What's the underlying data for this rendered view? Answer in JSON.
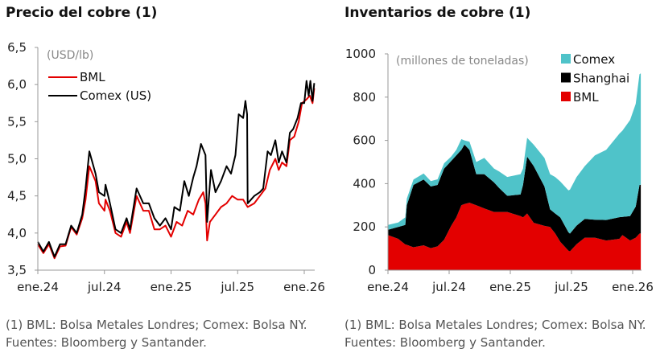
{
  "chart_data": [
    {
      "type": "line",
      "title": "Precio del cobre (1)",
      "unit_label": "(USD/lb)",
      "x_unit": "months since Jan 2024",
      "x_ticks": [
        {
          "value": 0,
          "label": "ene.24"
        },
        {
          "value": 6,
          "label": "jul.24"
        },
        {
          "value": 12,
          "label": "ene.25"
        },
        {
          "value": 18,
          "label": "jul.25"
        },
        {
          "value": 24,
          "label": "ene.26"
        }
      ],
      "y_ticks": [
        {
          "value": 3.5,
          "label": "3,5"
        },
        {
          "value": 4.0,
          "label": "4,0"
        },
        {
          "value": 4.5,
          "label": "4,5"
        },
        {
          "value": 5.0,
          "label": "5,0"
        },
        {
          "value": 5.5,
          "label": "5,5"
        },
        {
          "value": 6.0,
          "label": "6,0"
        },
        {
          "value": 6.5,
          "label": "6,5"
        }
      ],
      "ylim": [
        3.5,
        6.5
      ],
      "xlim": [
        0,
        24
      ],
      "legend_position": "top-left",
      "series": [
        {
          "name": "BML",
          "color": "#e30000",
          "points": [
            [
              0,
              3.85
            ],
            [
              0.5,
              3.73
            ],
            [
              1,
              3.85
            ],
            [
              1.5,
              3.66
            ],
            [
              2,
              3.82
            ],
            [
              2.5,
              3.83
            ],
            [
              3,
              4.08
            ],
            [
              3.5,
              3.98
            ],
            [
              4,
              4.2
            ],
            [
              4.3,
              4.45
            ],
            [
              4.64,
              4.9
            ],
            [
              5.2,
              4.7
            ],
            [
              5.5,
              4.4
            ],
            [
              6,
              4.3
            ],
            [
              6.1,
              4.45
            ],
            [
              6.5,
              4.3
            ],
            [
              7,
              4.0
            ],
            [
              7.5,
              3.95
            ],
            [
              8,
              4.15
            ],
            [
              8.3,
              4.0
            ],
            [
              8.9,
              4.5
            ],
            [
              9.5,
              4.3
            ],
            [
              10,
              4.3
            ],
            [
              10.5,
              4.05
            ],
            [
              11,
              4.05
            ],
            [
              11.5,
              4.1
            ],
            [
              12,
              3.95
            ],
            [
              12.5,
              4.15
            ],
            [
              13,
              4.1
            ],
            [
              13.5,
              4.3
            ],
            [
              14,
              4.25
            ],
            [
              14.5,
              4.45
            ],
            [
              14.9,
              4.55
            ],
            [
              15.1,
              4.4
            ],
            [
              15.25,
              3.9
            ],
            [
              15.5,
              4.15
            ],
            [
              16,
              4.25
            ],
            [
              16.5,
              4.35
            ],
            [
              17,
              4.4
            ],
            [
              17.5,
              4.5
            ],
            [
              18,
              4.45
            ],
            [
              18.5,
              4.45
            ],
            [
              18.9,
              4.35
            ],
            [
              19.5,
              4.4
            ],
            [
              20,
              4.5
            ],
            [
              20.5,
              4.6
            ],
            [
              20.9,
              4.85
            ],
            [
              21.4,
              5.0
            ],
            [
              21.7,
              4.85
            ],
            [
              22,
              4.95
            ],
            [
              22.4,
              4.9
            ],
            [
              22.7,
              5.25
            ],
            [
              23.1,
              5.3
            ],
            [
              23.5,
              5.5
            ],
            [
              23.8,
              5.75
            ],
            [
              24.2,
              5.8
            ],
            [
              24.5,
              5.85
            ],
            [
              24.75,
              5.75
            ],
            [
              24.9,
              5.95
            ]
          ]
        },
        {
          "name": "Comex (US)",
          "color": "#000000",
          "points": [
            [
              0,
              3.88
            ],
            [
              0.5,
              3.75
            ],
            [
              1,
              3.88
            ],
            [
              1.5,
              3.68
            ],
            [
              2,
              3.85
            ],
            [
              2.5,
              3.85
            ],
            [
              3,
              4.1
            ],
            [
              3.5,
              4.0
            ],
            [
              4,
              4.25
            ],
            [
              4.3,
              4.6
            ],
            [
              4.64,
              5.1
            ],
            [
              5.2,
              4.8
            ],
            [
              5.5,
              4.55
            ],
            [
              6,
              4.5
            ],
            [
              6.1,
              4.65
            ],
            [
              6.5,
              4.4
            ],
            [
              7,
              4.05
            ],
            [
              7.5,
              4.0
            ],
            [
              8,
              4.2
            ],
            [
              8.3,
              4.05
            ],
            [
              8.9,
              4.6
            ],
            [
              9.5,
              4.4
            ],
            [
              10,
              4.4
            ],
            [
              10.5,
              4.2
            ],
            [
              11,
              4.1
            ],
            [
              11.5,
              4.2
            ],
            [
              12,
              4.05
            ],
            [
              12.3,
              4.35
            ],
            [
              12.8,
              4.3
            ],
            [
              13.2,
              4.7
            ],
            [
              13.6,
              4.5
            ],
            [
              14,
              4.75
            ],
            [
              14.3,
              4.9
            ],
            [
              14.7,
              5.2
            ],
            [
              15.1,
              5.05
            ],
            [
              15.25,
              4.15
            ],
            [
              15.6,
              4.85
            ],
            [
              16,
              4.55
            ],
            [
              16.5,
              4.7
            ],
            [
              17,
              4.9
            ],
            [
              17.4,
              4.8
            ],
            [
              17.8,
              5.05
            ],
            [
              18.1,
              5.6
            ],
            [
              18.5,
              5.55
            ],
            [
              18.7,
              5.78
            ],
            [
              18.85,
              5.6
            ],
            [
              18.9,
              4.4
            ],
            [
              19.5,
              4.5
            ],
            [
              20,
              4.55
            ],
            [
              20.3,
              4.6
            ],
            [
              20.7,
              5.1
            ],
            [
              21,
              5.05
            ],
            [
              21.4,
              5.25
            ],
            [
              21.7,
              4.95
            ],
            [
              22,
              5.1
            ],
            [
              22.4,
              4.95
            ],
            [
              22.7,
              5.35
            ],
            [
              23,
              5.4
            ],
            [
              23.4,
              5.55
            ],
            [
              23.7,
              5.75
            ],
            [
              24,
              5.75
            ],
            [
              24.2,
              6.05
            ],
            [
              24.4,
              5.85
            ],
            [
              24.55,
              6.05
            ],
            [
              24.75,
              5.78
            ],
            [
              24.9,
              6.02
            ]
          ]
        }
      ]
    },
    {
      "type": "area",
      "stacked": true,
      "title": "Inventarios de cobre (1)",
      "unit_label": "(millones de toneladas)",
      "x_unit": "months since Jan 2024",
      "x_ticks": [
        {
          "value": 0,
          "label": "ene.24"
        },
        {
          "value": 6,
          "label": "jul.24"
        },
        {
          "value": 12,
          "label": "ene.25"
        },
        {
          "value": 18,
          "label": "jul.25"
        },
        {
          "value": 24,
          "label": "ene.26"
        }
      ],
      "y_ticks": [
        {
          "value": 0,
          "label": "0"
        },
        {
          "value": 200,
          "label": "200"
        },
        {
          "value": 400,
          "label": "400"
        },
        {
          "value": 600,
          "label": "600"
        },
        {
          "value": 800,
          "label": "800"
        },
        {
          "value": 1000,
          "label": "1000"
        }
      ],
      "ylim": [
        0,
        1000
      ],
      "xlim": [
        0,
        24
      ],
      "legend_position": "top-right",
      "x": [
        0,
        1,
        1.7,
        1.85,
        2.5,
        3.5,
        4.2,
        4.86,
        5.5,
        6.2,
        6.7,
        7.2,
        7.5,
        8.0,
        8.66,
        9.45,
        10.4,
        10.9,
        11.7,
        13.0,
        13.25,
        13.65,
        14.3,
        15.35,
        15.9,
        16.4,
        16.9,
        17.7,
        17.85,
        18.5,
        19.3,
        20.3,
        21.4,
        22.7,
        23.0,
        23.75,
        24.3,
        24.67,
        24.8
      ],
      "series": [
        {
          "name": "BML",
          "color": "#e30000",
          "values": [
            162,
            145,
            119,
            117,
            106,
            115,
            102,
            110,
            140,
            205,
            244,
            300,
            306,
            312,
            300,
            285,
            269,
            269,
            269,
            250,
            244,
            262,
            219,
            205,
            200,
            170,
            131,
            90,
            87,
            120,
            150,
            150,
            137,
            145,
            162,
            137,
            150,
            169,
            170
          ]
        },
        {
          "name": "Shanghai",
          "color": "#000000",
          "values": [
            25,
            55,
            90,
            183,
            288,
            304,
            285,
            284,
            329,
            300,
            287,
            256,
            275,
            244,
            144,
            159,
            137,
            111,
            75,
            100,
            150,
            263,
            262,
            182,
            81,
            92,
            113,
            85,
            82,
            86,
            87,
            83,
            95,
            100,
            84,
            113,
            144,
            225,
            225
          ]
        },
        {
          "name": "Comex",
          "color": "#4fc3c9",
          "values": [
            22,
            20,
            35,
            31,
            25,
            28,
            25,
            26,
            25,
            20,
            25,
            50,
            19,
            38,
            56,
            75,
            64,
            76,
            87,
            94,
            76,
            87,
            99,
            132,
            163,
            169,
            166,
            194,
            203,
            224,
            244,
            298,
            324,
            386,
            399,
            444,
            475,
            512,
            515
          ]
        }
      ]
    }
  ],
  "footnotes": {
    "left": [
      "(1) BML: Bolsa Metales Londres; Comex: Bolsa NY.",
      "Fuentes: Bloomberg y Santander."
    ],
    "right": [
      "(1) BML: Bolsa Metales Londres; Comex: Bolsa NY.",
      "Fuentes: Bloomberg y Santander."
    ]
  }
}
